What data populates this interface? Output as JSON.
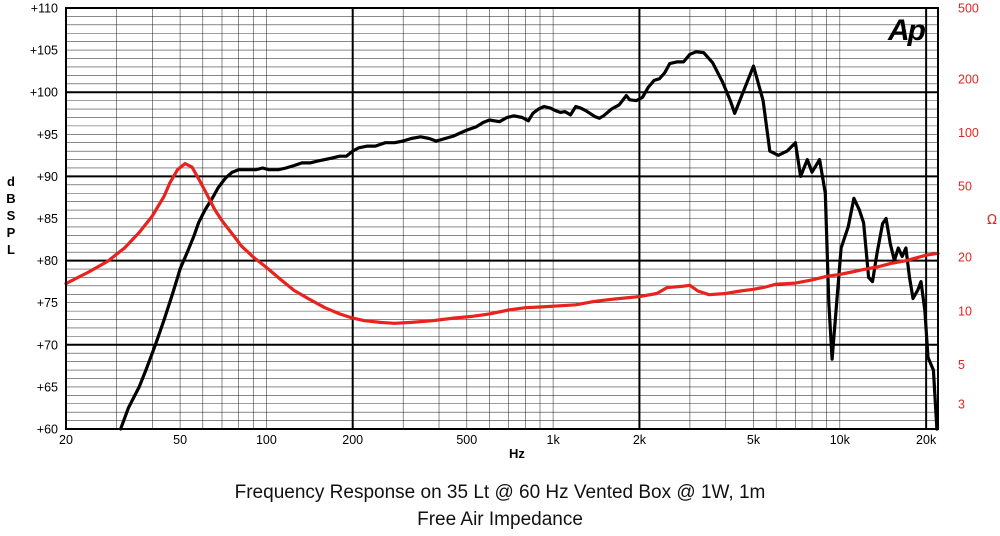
{
  "chart_data": {
    "type": "line",
    "title": "Frequency Response on 35 Lt @ 60 Hz Vented Box @ 1W, 1m",
    "subtitle": "Free Air Impedance",
    "xlabel": "Hz",
    "ylabel": "d B S P L",
    "ylabel_right": "Ω",
    "x_scale": "log",
    "xlim": [
      20,
      22000
    ],
    "ylim": [
      60,
      110
    ],
    "ylim_right": [
      2.17,
      500
    ],
    "y_right_scale": "log",
    "x_tick_labels": [
      "20",
      "50",
      "100",
      "200",
      "500",
      "1k",
      "2k",
      "5k",
      "10k",
      "20k"
    ],
    "x_tick_values": [
      20,
      50,
      100,
      200,
      500,
      1000,
      2000,
      5000,
      10000,
      20000
    ],
    "y_tick_labels": [
      "+110",
      "+105",
      "+100",
      "+95",
      "+90",
      "+85",
      "+80",
      "+75",
      "+70",
      "+65",
      "+60"
    ],
    "y_tick_values": [
      110,
      105,
      100,
      95,
      90,
      85,
      80,
      75,
      70,
      65,
      60
    ],
    "y_right_tick_labels": [
      "500",
      "200",
      "100",
      "50",
      "20",
      "10",
      "5",
      "3"
    ],
    "y_right_tick_values": [
      500,
      200,
      100,
      50,
      20,
      10,
      5,
      3
    ],
    "logo": "Ap",
    "grid": true,
    "series": [
      {
        "color": "#000000",
        "axis": "left",
        "points": [
          [
            31,
            60
          ],
          [
            33,
            62.5
          ],
          [
            36,
            65
          ],
          [
            38,
            67
          ],
          [
            41,
            70
          ],
          [
            44,
            73
          ],
          [
            47,
            76
          ],
          [
            49,
            78
          ],
          [
            50,
            79
          ],
          [
            53,
            81
          ],
          [
            56,
            83
          ],
          [
            58,
            84.5
          ],
          [
            61,
            86
          ],
          [
            65,
            87.5
          ],
          [
            68,
            88.7
          ],
          [
            72,
            89.8
          ],
          [
            76,
            90.5
          ],
          [
            80,
            90.8
          ],
          [
            86,
            90.8
          ],
          [
            92,
            90.8
          ],
          [
            97,
            91
          ],
          [
            102,
            90.8
          ],
          [
            110,
            90.8
          ],
          [
            117,
            91
          ],
          [
            125,
            91.3
          ],
          [
            133,
            91.6
          ],
          [
            142,
            91.6
          ],
          [
            150,
            91.8
          ],
          [
            160,
            92
          ],
          [
            170,
            92.2
          ],
          [
            180,
            92.4
          ],
          [
            190,
            92.4
          ],
          [
            200,
            93
          ],
          [
            210,
            93.4
          ],
          [
            225,
            93.6
          ],
          [
            240,
            93.6
          ],
          [
            260,
            94
          ],
          [
            280,
            94
          ],
          [
            300,
            94.2
          ],
          [
            320,
            94.5
          ],
          [
            345,
            94.7
          ],
          [
            370,
            94.5
          ],
          [
            390,
            94.2
          ],
          [
            410,
            94.4
          ],
          [
            450,
            94.8
          ],
          [
            470,
            95.1
          ],
          [
            500,
            95.5
          ],
          [
            540,
            95.9
          ],
          [
            570,
            96.4
          ],
          [
            600,
            96.7
          ],
          [
            650,
            96.5
          ],
          [
            690,
            97
          ],
          [
            730,
            97.2
          ],
          [
            780,
            97
          ],
          [
            820,
            96.6
          ],
          [
            850,
            97.5
          ],
          [
            890,
            98
          ],
          [
            930,
            98.3
          ],
          [
            980,
            98.1
          ],
          [
            1020,
            97.8
          ],
          [
            1060,
            97.6
          ],
          [
            1100,
            97.7
          ],
          [
            1150,
            97.3
          ],
          [
            1200,
            98.3
          ],
          [
            1250,
            98.1
          ],
          [
            1300,
            97.8
          ],
          [
            1400,
            97.1
          ],
          [
            1450,
            96.9
          ],
          [
            1500,
            97.2
          ],
          [
            1600,
            98
          ],
          [
            1700,
            98.5
          ],
          [
            1800,
            99.6
          ],
          [
            1850,
            99.1
          ],
          [
            1950,
            99
          ],
          [
            2050,
            99.4
          ],
          [
            2150,
            100.6
          ],
          [
            2250,
            101.4
          ],
          [
            2350,
            101.6
          ],
          [
            2450,
            102.3
          ],
          [
            2550,
            103.4
          ],
          [
            2700,
            103.6
          ],
          [
            2850,
            103.6
          ],
          [
            3000,
            104.5
          ],
          [
            3150,
            104.8
          ],
          [
            3350,
            104.7
          ],
          [
            3600,
            103.5
          ],
          [
            3900,
            101.2
          ],
          [
            4150,
            99
          ],
          [
            4300,
            97.5
          ],
          [
            4600,
            100
          ],
          [
            5000,
            103.1
          ],
          [
            5400,
            99
          ],
          [
            5700,
            93
          ],
          [
            6100,
            92.5
          ],
          [
            6550,
            93
          ],
          [
            7000,
            94
          ],
          [
            7300,
            90
          ],
          [
            7700,
            92
          ],
          [
            8000,
            90.5
          ],
          [
            8500,
            92
          ],
          [
            8900,
            88
          ],
          [
            9150,
            75
          ],
          [
            9400,
            68.3
          ],
          [
            9700,
            74
          ],
          [
            10100,
            81.5
          ],
          [
            10700,
            84
          ],
          [
            11200,
            87.4
          ],
          [
            11700,
            86
          ],
          [
            12100,
            84.5
          ],
          [
            12600,
            78
          ],
          [
            13000,
            77.5
          ],
          [
            13500,
            81
          ],
          [
            14100,
            84.4
          ],
          [
            14500,
            85
          ],
          [
            15000,
            82
          ],
          [
            15500,
            80
          ],
          [
            16000,
            81.5
          ],
          [
            16500,
            80.5
          ],
          [
            17000,
            81.5
          ],
          [
            17500,
            78
          ],
          [
            18000,
            75.5
          ],
          [
            18700,
            76.5
          ],
          [
            19200,
            77.5
          ],
          [
            19800,
            74
          ],
          [
            20300,
            68.5
          ],
          [
            21200,
            67
          ],
          [
            21800,
            60
          ]
        ]
      },
      {
        "color": "#e8231e",
        "axis": "right",
        "points": [
          [
            20,
            14.2
          ],
          [
            24,
            16.5
          ],
          [
            28,
            19
          ],
          [
            32,
            22.5
          ],
          [
            36,
            27.5
          ],
          [
            40,
            34
          ],
          [
            44,
            44
          ],
          [
            46,
            52
          ],
          [
            49,
            62
          ],
          [
            52,
            67
          ],
          [
            55,
            64
          ],
          [
            58,
            55
          ],
          [
            62,
            45
          ],
          [
            66,
            37
          ],
          [
            70,
            32
          ],
          [
            76,
            27
          ],
          [
            82,
            23
          ],
          [
            90,
            20
          ],
          [
            100,
            17.5
          ],
          [
            112,
            15
          ],
          [
            125,
            13
          ],
          [
            140,
            11.7
          ],
          [
            160,
            10.4
          ],
          [
            180,
            9.6
          ],
          [
            200,
            9.1
          ],
          [
            220,
            8.8
          ],
          [
            250,
            8.6
          ],
          [
            280,
            8.5
          ],
          [
            320,
            8.6
          ],
          [
            380,
            8.8
          ],
          [
            450,
            9.1
          ],
          [
            520,
            9.3
          ],
          [
            600,
            9.6
          ],
          [
            700,
            10.1
          ],
          [
            800,
            10.4
          ],
          [
            900,
            10.5
          ],
          [
            1000,
            10.6
          ],
          [
            1200,
            10.8
          ],
          [
            1400,
            11.3
          ],
          [
            1600,
            11.6
          ],
          [
            1800,
            11.8
          ],
          [
            2000,
            12
          ],
          [
            2300,
            12.5
          ],
          [
            2500,
            13.5
          ],
          [
            2800,
            13.7
          ],
          [
            3000,
            13.9
          ],
          [
            3200,
            12.9
          ],
          [
            3500,
            12.3
          ],
          [
            4000,
            12.5
          ],
          [
            4500,
            12.9
          ],
          [
            5000,
            13.2
          ],
          [
            5500,
            13.6
          ],
          [
            6000,
            14.1
          ],
          [
            7000,
            14.3
          ],
          [
            8000,
            14.9
          ],
          [
            9000,
            15.6
          ],
          [
            10000,
            16
          ],
          [
            11000,
            16.5
          ],
          [
            12000,
            17
          ],
          [
            13500,
            17.6
          ],
          [
            15000,
            18.4
          ],
          [
            17000,
            19.1
          ],
          [
            20000,
            20.5
          ],
          [
            22000,
            21
          ]
        ]
      }
    ]
  }
}
